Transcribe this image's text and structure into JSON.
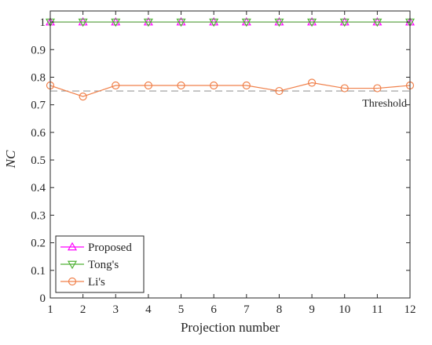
{
  "chart_data": {
    "type": "line",
    "xlabel": "Projection number",
    "ylabel": "NC",
    "xlim": [
      1,
      12
    ],
    "ylim": [
      0,
      1.04
    ],
    "x": [
      1,
      2,
      3,
      4,
      5,
      6,
      7,
      8,
      9,
      10,
      11,
      12
    ],
    "x_ticks": [
      "1",
      "2",
      "3",
      "4",
      "5",
      "6",
      "7",
      "8",
      "9",
      "10",
      "11",
      "12"
    ],
    "y_ticks": [
      "0",
      "0.1",
      "0.2",
      "0.3",
      "0.4",
      "0.5",
      "0.6",
      "0.7",
      "0.8",
      "0.9",
      "1"
    ],
    "grid": false,
    "legend_position": "bottom-left",
    "series": [
      {
        "name": "Proposed",
        "marker": "triangle-up",
        "color": "#ff00ff",
        "values": [
          1,
          1,
          1,
          1,
          1,
          1,
          1,
          1,
          1,
          1,
          1,
          1
        ]
      },
      {
        "name": "Tong's",
        "marker": "triangle-down",
        "color": "#4fb135",
        "values": [
          1,
          1,
          1,
          1,
          1,
          1,
          1,
          1,
          1,
          1,
          1,
          1
        ]
      },
      {
        "name": "Li's",
        "marker": "circle",
        "color": "#f0804a",
        "values": [
          0.77,
          0.73,
          0.77,
          0.77,
          0.77,
          0.77,
          0.77,
          0.75,
          0.78,
          0.76,
          0.76,
          0.77
        ]
      }
    ],
    "threshold": {
      "value": 0.75,
      "label": "Threshold",
      "color": "#999999"
    }
  }
}
